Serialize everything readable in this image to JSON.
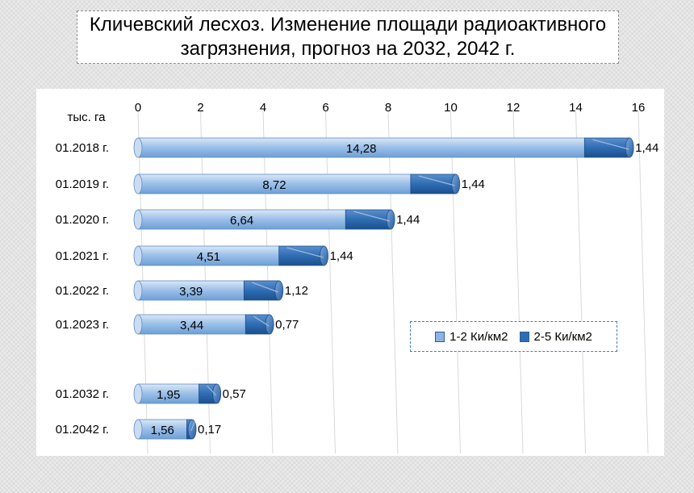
{
  "chart_data": {
    "type": "bar",
    "orientation": "horizontal",
    "stacked": true,
    "title": "Кличевский лесхоз. Изменение площади радиоактивного загрязнения, прогноз на 2032, 2042 г.",
    "title_lines": [
      "Кличевский лесхоз. Изменение площади радиоактивного",
      "загрязнения, прогноз на 2032, 2042 г."
    ],
    "unit_label": "тыс. га",
    "categories": [
      "01.2018 г.",
      "01.2019 г.",
      "01.2020 г.",
      "01.2021 г.",
      "01.2022 г.",
      "01.2023 г.",
      "01.2032 г.",
      "01.2042 г."
    ],
    "series": [
      {
        "name": "1-2 Ки/км2",
        "values": [
          14.28,
          8.72,
          6.64,
          4.51,
          3.39,
          3.44,
          1.95,
          1.56
        ],
        "labels": [
          "14,28",
          "8,72",
          "6,64",
          "4,51",
          "3,39",
          "3,44",
          "1,95",
          "1,56"
        ],
        "color": "#8db4e2"
      },
      {
        "name": "2-5 Ки/км2",
        "values": [
          1.44,
          1.44,
          1.44,
          1.44,
          1.12,
          0.77,
          0.57,
          0.17
        ],
        "labels": [
          "1,44",
          "1,44",
          "1,44",
          "1,44",
          "1,12",
          "0,77",
          "0,57",
          "0,17"
        ],
        "color": "#2f6db3"
      }
    ],
    "xlim": [
      0,
      16
    ],
    "xticks": [
      "0",
      "2",
      "4",
      "6",
      "8",
      "10",
      "12",
      "14",
      "16"
    ],
    "axis_position": "top",
    "grid": true,
    "legend_position": "right"
  }
}
